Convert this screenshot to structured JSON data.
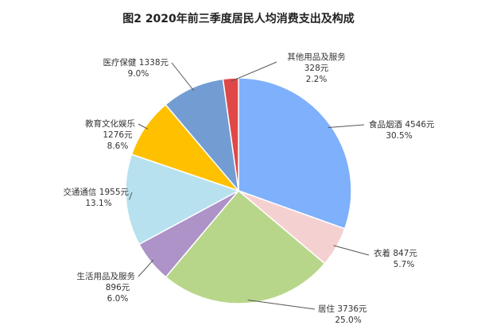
{
  "chart_data": {
    "type": "pie",
    "title": "图2    2020年前三季度居民人均消费支出及构成",
    "start_angle_deg": 0,
    "direction": "clockwise",
    "legend": "none",
    "slices": [
      {
        "name": "食品烟酒",
        "amount_label": "4546元",
        "percent_label": "30.5%",
        "value": 30.5,
        "color": "#7fb0fb"
      },
      {
        "name": "衣着",
        "amount_label": "847元",
        "percent_label": "5.7%",
        "value": 5.7,
        "color": "#f5d0d0"
      },
      {
        "name": "居住",
        "amount_label": "3736元",
        "percent_label": "25.0%",
        "value": 25.0,
        "color": "#b7d68a"
      },
      {
        "name": "生活用品及服务",
        "amount_label": "896元",
        "percent_label": "6.0%",
        "value": 6.0,
        "color": "#ad93c8"
      },
      {
        "name": "交通通信",
        "amount_label": "1955元",
        "percent_label": "13.1%",
        "value": 13.1,
        "color": "#b7e1ee"
      },
      {
        "name": "教育文化娱乐",
        "amount_label": "1276元",
        "percent_label": "8.6%",
        "value": 8.6,
        "color": "#ffc000"
      },
      {
        "name": "医疗保健",
        "amount_label": "1338元",
        "percent_label": "9.0%",
        "value": 9.0,
        "color": "#739dd2"
      },
      {
        "name": "其他用品及服务",
        "amount_label": "328元",
        "percent_label": "2.2%",
        "value": 2.2,
        "color": "#e04848"
      }
    ]
  }
}
